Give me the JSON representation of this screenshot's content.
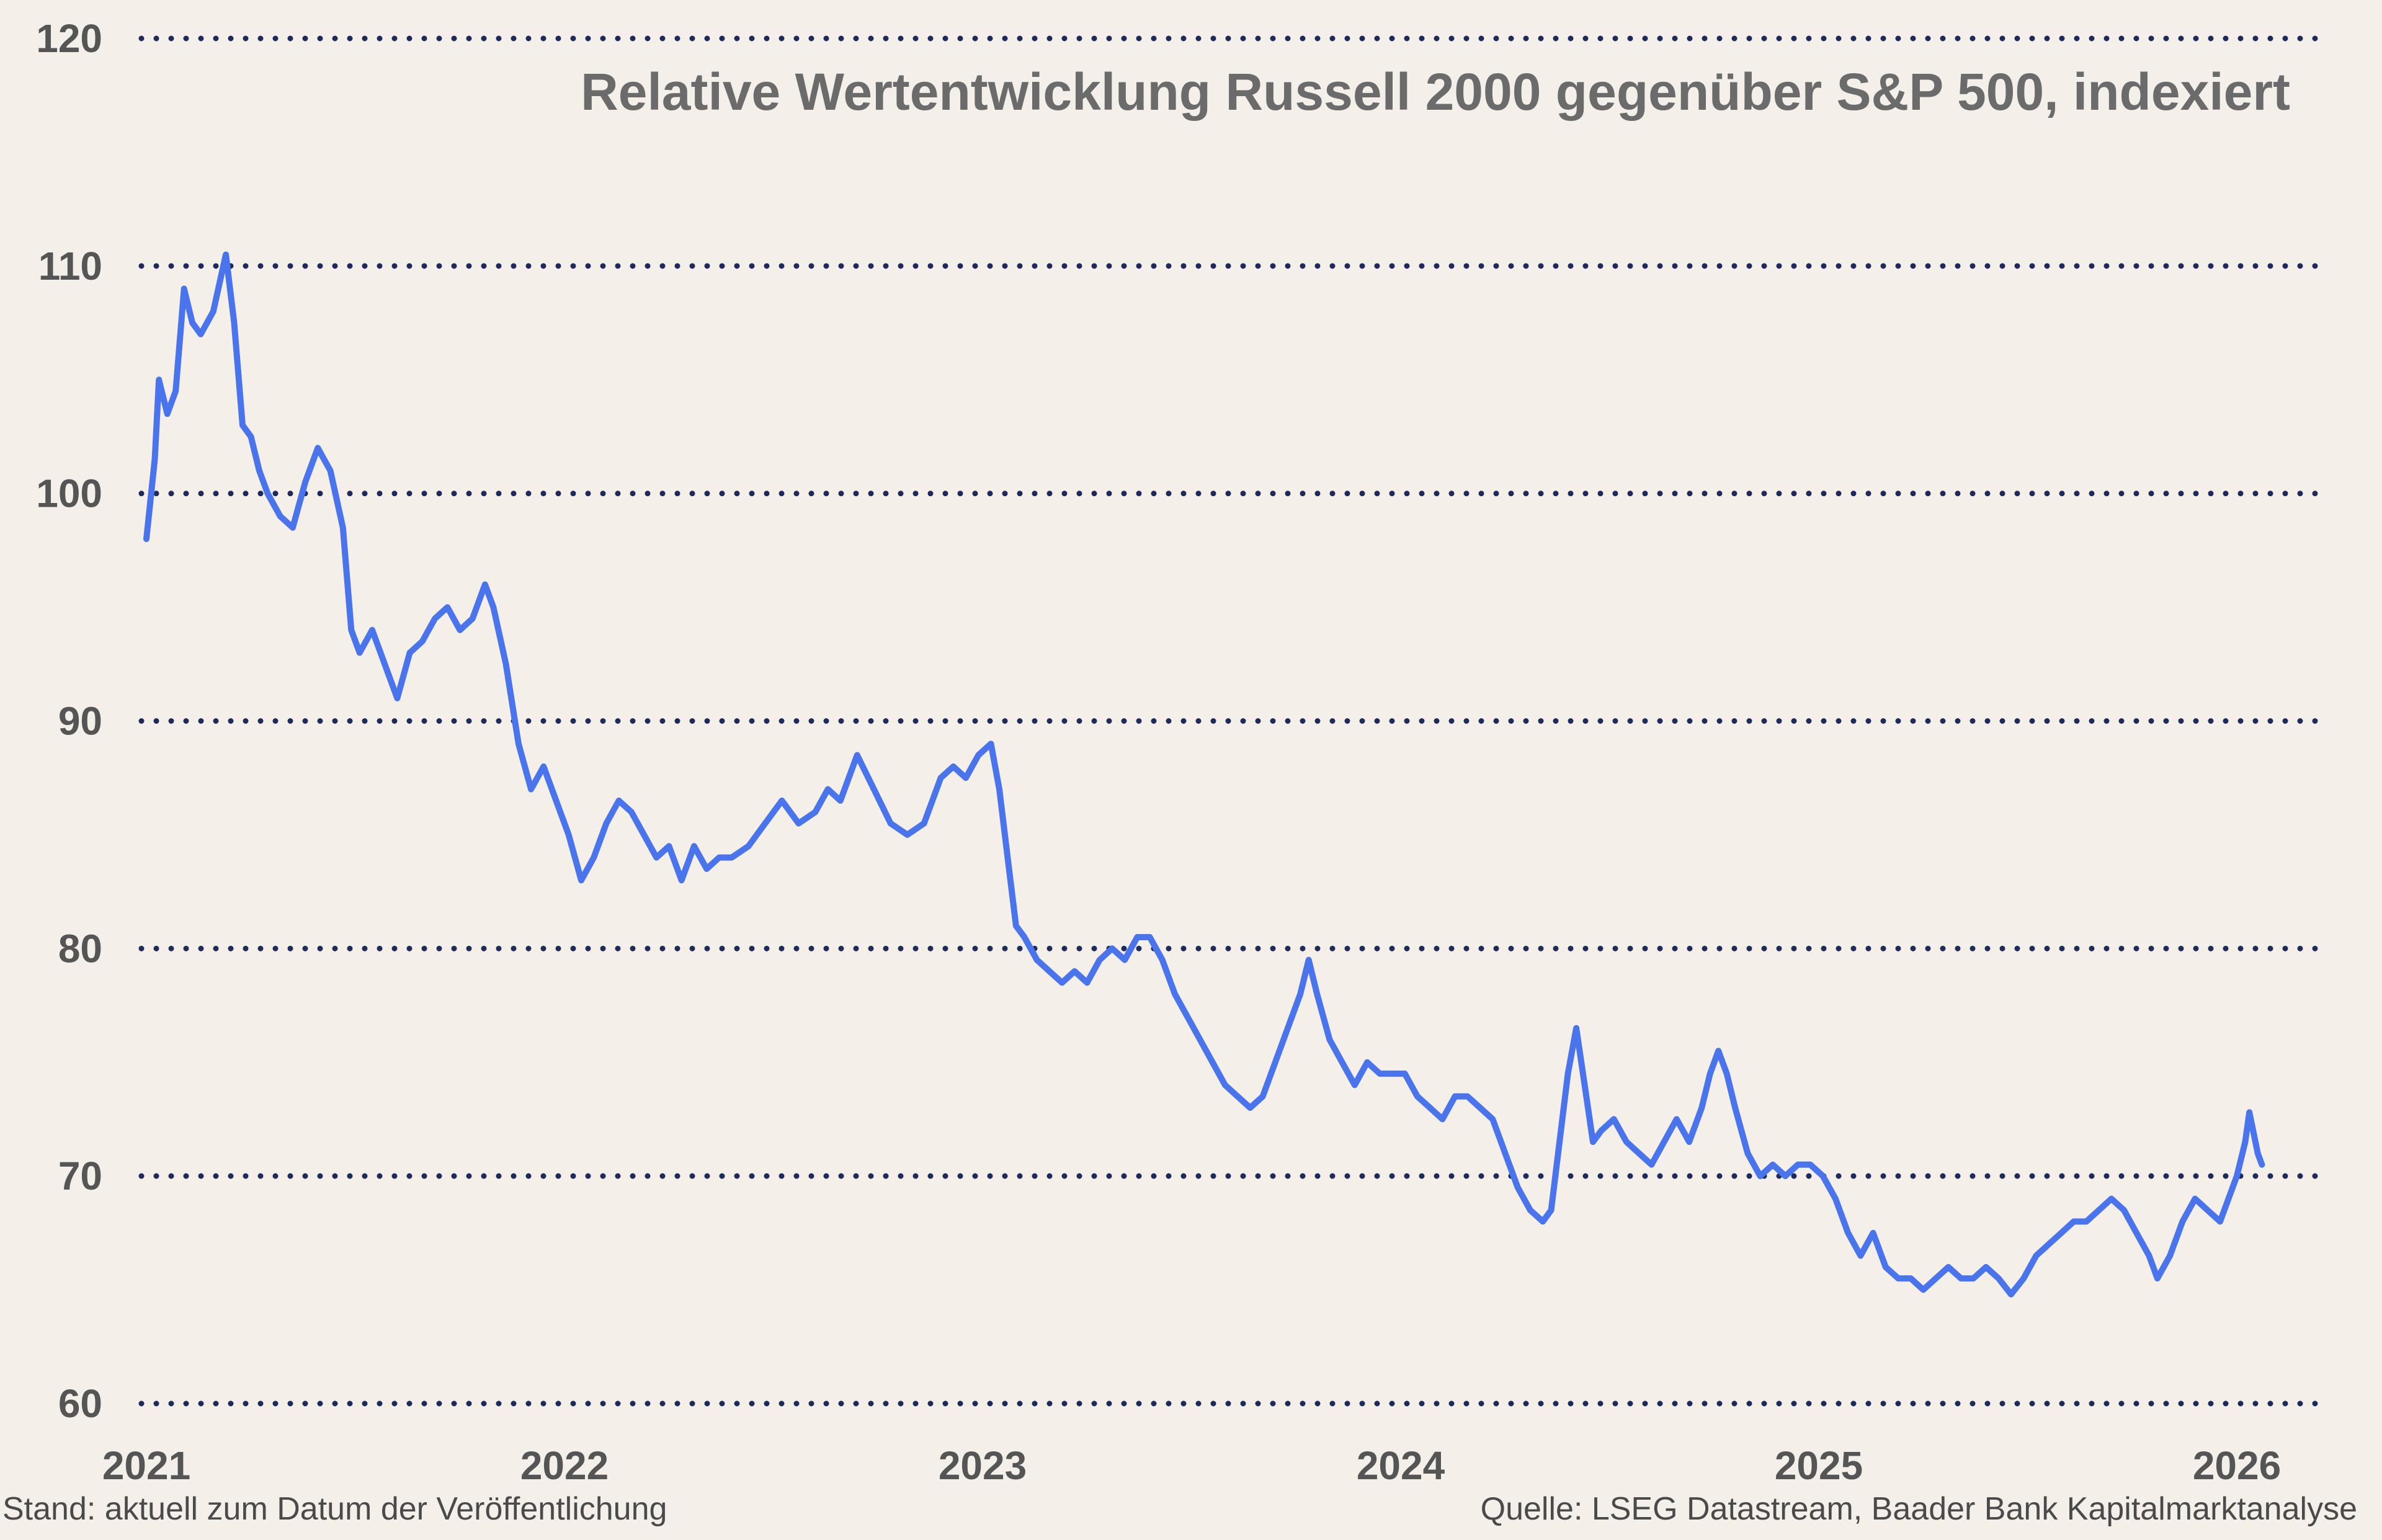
{
  "chart_data": {
    "type": "line",
    "title": "Relative Wertentwicklung Russell 2000 gegenüber S&P 500, indexiert",
    "xlabel": "",
    "ylabel": "",
    "xlim": [
      2021.0,
      2026.2
    ],
    "ylim": [
      60,
      120
    ],
    "yticks": [
      "60",
      "70",
      "80",
      "90",
      "100",
      "110",
      "120"
    ],
    "xticks": [
      "2021",
      "2022",
      "2023",
      "2024",
      "2025",
      "2026"
    ],
    "grid": "horizontal dotted",
    "series": [
      {
        "color": "#4a74ec",
        "points": [
          [
            2021.0,
            98.0
          ],
          [
            2021.02,
            101.5
          ],
          [
            2021.03,
            105.0
          ],
          [
            2021.05,
            103.5
          ],
          [
            2021.07,
            104.5
          ],
          [
            2021.09,
            109.0
          ],
          [
            2021.11,
            107.5
          ],
          [
            2021.13,
            107.0
          ],
          [
            2021.16,
            108.0
          ],
          [
            2021.19,
            110.5
          ],
          [
            2021.21,
            107.5
          ],
          [
            2021.23,
            103.0
          ],
          [
            2021.25,
            102.5
          ],
          [
            2021.27,
            101.0
          ],
          [
            2021.29,
            100.0
          ],
          [
            2021.32,
            99.0
          ],
          [
            2021.35,
            98.5
          ],
          [
            2021.38,
            100.5
          ],
          [
            2021.41,
            102.0
          ],
          [
            2021.44,
            101.0
          ],
          [
            2021.47,
            98.5
          ],
          [
            2021.49,
            94.0
          ],
          [
            2021.51,
            93.0
          ],
          [
            2021.54,
            94.0
          ],
          [
            2021.57,
            92.5
          ],
          [
            2021.6,
            91.0
          ],
          [
            2021.63,
            93.0
          ],
          [
            2021.66,
            93.5
          ],
          [
            2021.69,
            94.5
          ],
          [
            2021.72,
            95.0
          ],
          [
            2021.75,
            94.0
          ],
          [
            2021.78,
            94.5
          ],
          [
            2021.81,
            96.0
          ],
          [
            2021.83,
            95.0
          ],
          [
            2021.86,
            92.5
          ],
          [
            2021.89,
            89.0
          ],
          [
            2021.92,
            87.0
          ],
          [
            2021.95,
            88.0
          ],
          [
            2021.98,
            86.5
          ],
          [
            2022.01,
            85.0
          ],
          [
            2022.04,
            83.0
          ],
          [
            2022.07,
            84.0
          ],
          [
            2022.1,
            85.5
          ],
          [
            2022.13,
            86.5
          ],
          [
            2022.16,
            86.0
          ],
          [
            2022.19,
            85.0
          ],
          [
            2022.22,
            84.0
          ],
          [
            2022.25,
            84.5
          ],
          [
            2022.28,
            83.0
          ],
          [
            2022.31,
            84.5
          ],
          [
            2022.34,
            83.5
          ],
          [
            2022.37,
            84.0
          ],
          [
            2022.4,
            84.0
          ],
          [
            2022.44,
            84.5
          ],
          [
            2022.48,
            85.5
          ],
          [
            2022.52,
            86.5
          ],
          [
            2022.56,
            85.5
          ],
          [
            2022.6,
            86.0
          ],
          [
            2022.63,
            87.0
          ],
          [
            2022.66,
            86.5
          ],
          [
            2022.7,
            88.5
          ],
          [
            2022.74,
            87.0
          ],
          [
            2022.78,
            85.5
          ],
          [
            2022.82,
            85.0
          ],
          [
            2022.86,
            85.5
          ],
          [
            2022.9,
            87.5
          ],
          [
            2022.93,
            88.0
          ],
          [
            2022.96,
            87.5
          ],
          [
            2022.99,
            88.5
          ],
          [
            2023.02,
            89.0
          ],
          [
            2023.04,
            87.0
          ],
          [
            2023.06,
            84.0
          ],
          [
            2023.08,
            81.0
          ],
          [
            2023.1,
            80.5
          ],
          [
            2023.13,
            79.5
          ],
          [
            2023.16,
            79.0
          ],
          [
            2023.19,
            78.5
          ],
          [
            2023.22,
            79.0
          ],
          [
            2023.25,
            78.5
          ],
          [
            2023.28,
            79.5
          ],
          [
            2023.31,
            80.0
          ],
          [
            2023.34,
            79.5
          ],
          [
            2023.37,
            80.5
          ],
          [
            2023.4,
            80.5
          ],
          [
            2023.43,
            79.5
          ],
          [
            2023.46,
            78.0
          ],
          [
            2023.49,
            77.0
          ],
          [
            2023.52,
            76.0
          ],
          [
            2023.55,
            75.0
          ],
          [
            2023.58,
            74.0
          ],
          [
            2023.61,
            73.5
          ],
          [
            2023.64,
            73.0
          ],
          [
            2023.67,
            73.5
          ],
          [
            2023.7,
            75.0
          ],
          [
            2023.73,
            76.5
          ],
          [
            2023.76,
            78.0
          ],
          [
            2023.78,
            79.5
          ],
          [
            2023.8,
            78.0
          ],
          [
            2023.83,
            76.0
          ],
          [
            2023.86,
            75.0
          ],
          [
            2023.89,
            74.0
          ],
          [
            2023.92,
            75.0
          ],
          [
            2023.95,
            74.5
          ],
          [
            2023.98,
            74.5
          ],
          [
            2024.01,
            74.5
          ],
          [
            2024.04,
            73.5
          ],
          [
            2024.07,
            73.0
          ],
          [
            2024.1,
            72.5
          ],
          [
            2024.13,
            73.5
          ],
          [
            2024.16,
            73.5
          ],
          [
            2024.19,
            73.0
          ],
          [
            2024.22,
            72.5
          ],
          [
            2024.25,
            71.0
          ],
          [
            2024.28,
            69.5
          ],
          [
            2024.31,
            68.5
          ],
          [
            2024.34,
            68.0
          ],
          [
            2024.36,
            68.5
          ],
          [
            2024.38,
            71.5
          ],
          [
            2024.4,
            74.5
          ],
          [
            2024.42,
            76.5
          ],
          [
            2024.44,
            74.0
          ],
          [
            2024.46,
            71.5
          ],
          [
            2024.48,
            72.0
          ],
          [
            2024.51,
            72.5
          ],
          [
            2024.54,
            71.5
          ],
          [
            2024.57,
            71.0
          ],
          [
            2024.6,
            70.5
          ],
          [
            2024.63,
            71.5
          ],
          [
            2024.66,
            72.5
          ],
          [
            2024.69,
            71.5
          ],
          [
            2024.72,
            73.0
          ],
          [
            2024.74,
            74.5
          ],
          [
            2024.76,
            75.5
          ],
          [
            2024.78,
            74.5
          ],
          [
            2024.8,
            73.0
          ],
          [
            2024.83,
            71.0
          ],
          [
            2024.86,
            70.0
          ],
          [
            2024.89,
            70.5
          ],
          [
            2024.92,
            70.0
          ],
          [
            2024.95,
            70.5
          ],
          [
            2024.98,
            70.5
          ],
          [
            2025.01,
            70.0
          ],
          [
            2025.04,
            69.0
          ],
          [
            2025.07,
            67.5
          ],
          [
            2025.1,
            66.5
          ],
          [
            2025.13,
            67.5
          ],
          [
            2025.16,
            66.0
          ],
          [
            2025.19,
            65.5
          ],
          [
            2025.22,
            65.5
          ],
          [
            2025.25,
            65.0
          ],
          [
            2025.28,
            65.5
          ],
          [
            2025.31,
            66.0
          ],
          [
            2025.34,
            65.5
          ],
          [
            2025.37,
            65.5
          ],
          [
            2025.4,
            66.0
          ],
          [
            2025.43,
            65.5
          ],
          [
            2025.46,
            64.8
          ],
          [
            2025.49,
            65.5
          ],
          [
            2025.52,
            66.5
          ],
          [
            2025.55,
            67.0
          ],
          [
            2025.58,
            67.5
          ],
          [
            2025.61,
            68.0
          ],
          [
            2025.64,
            68.0
          ],
          [
            2025.67,
            68.5
          ],
          [
            2025.7,
            69.0
          ],
          [
            2025.73,
            68.5
          ],
          [
            2025.76,
            67.5
          ],
          [
            2025.79,
            66.5
          ],
          [
            2025.81,
            65.5
          ],
          [
            2025.84,
            66.5
          ],
          [
            2025.87,
            68.0
          ],
          [
            2025.9,
            69.0
          ],
          [
            2025.93,
            68.5
          ],
          [
            2025.96,
            68.0
          ],
          [
            2025.98,
            69.0
          ],
          [
            2026.0,
            70.0
          ],
          [
            2026.02,
            71.5
          ],
          [
            2026.03,
            72.8
          ],
          [
            2026.05,
            71.0
          ],
          [
            2026.06,
            70.5
          ]
        ]
      }
    ]
  },
  "footer": {
    "left": "Stand: aktuell zum Datum der Veröffentlichung",
    "right": "Quelle: LSEG Datastream, Baader Bank Kapitalmarktanalyse"
  }
}
